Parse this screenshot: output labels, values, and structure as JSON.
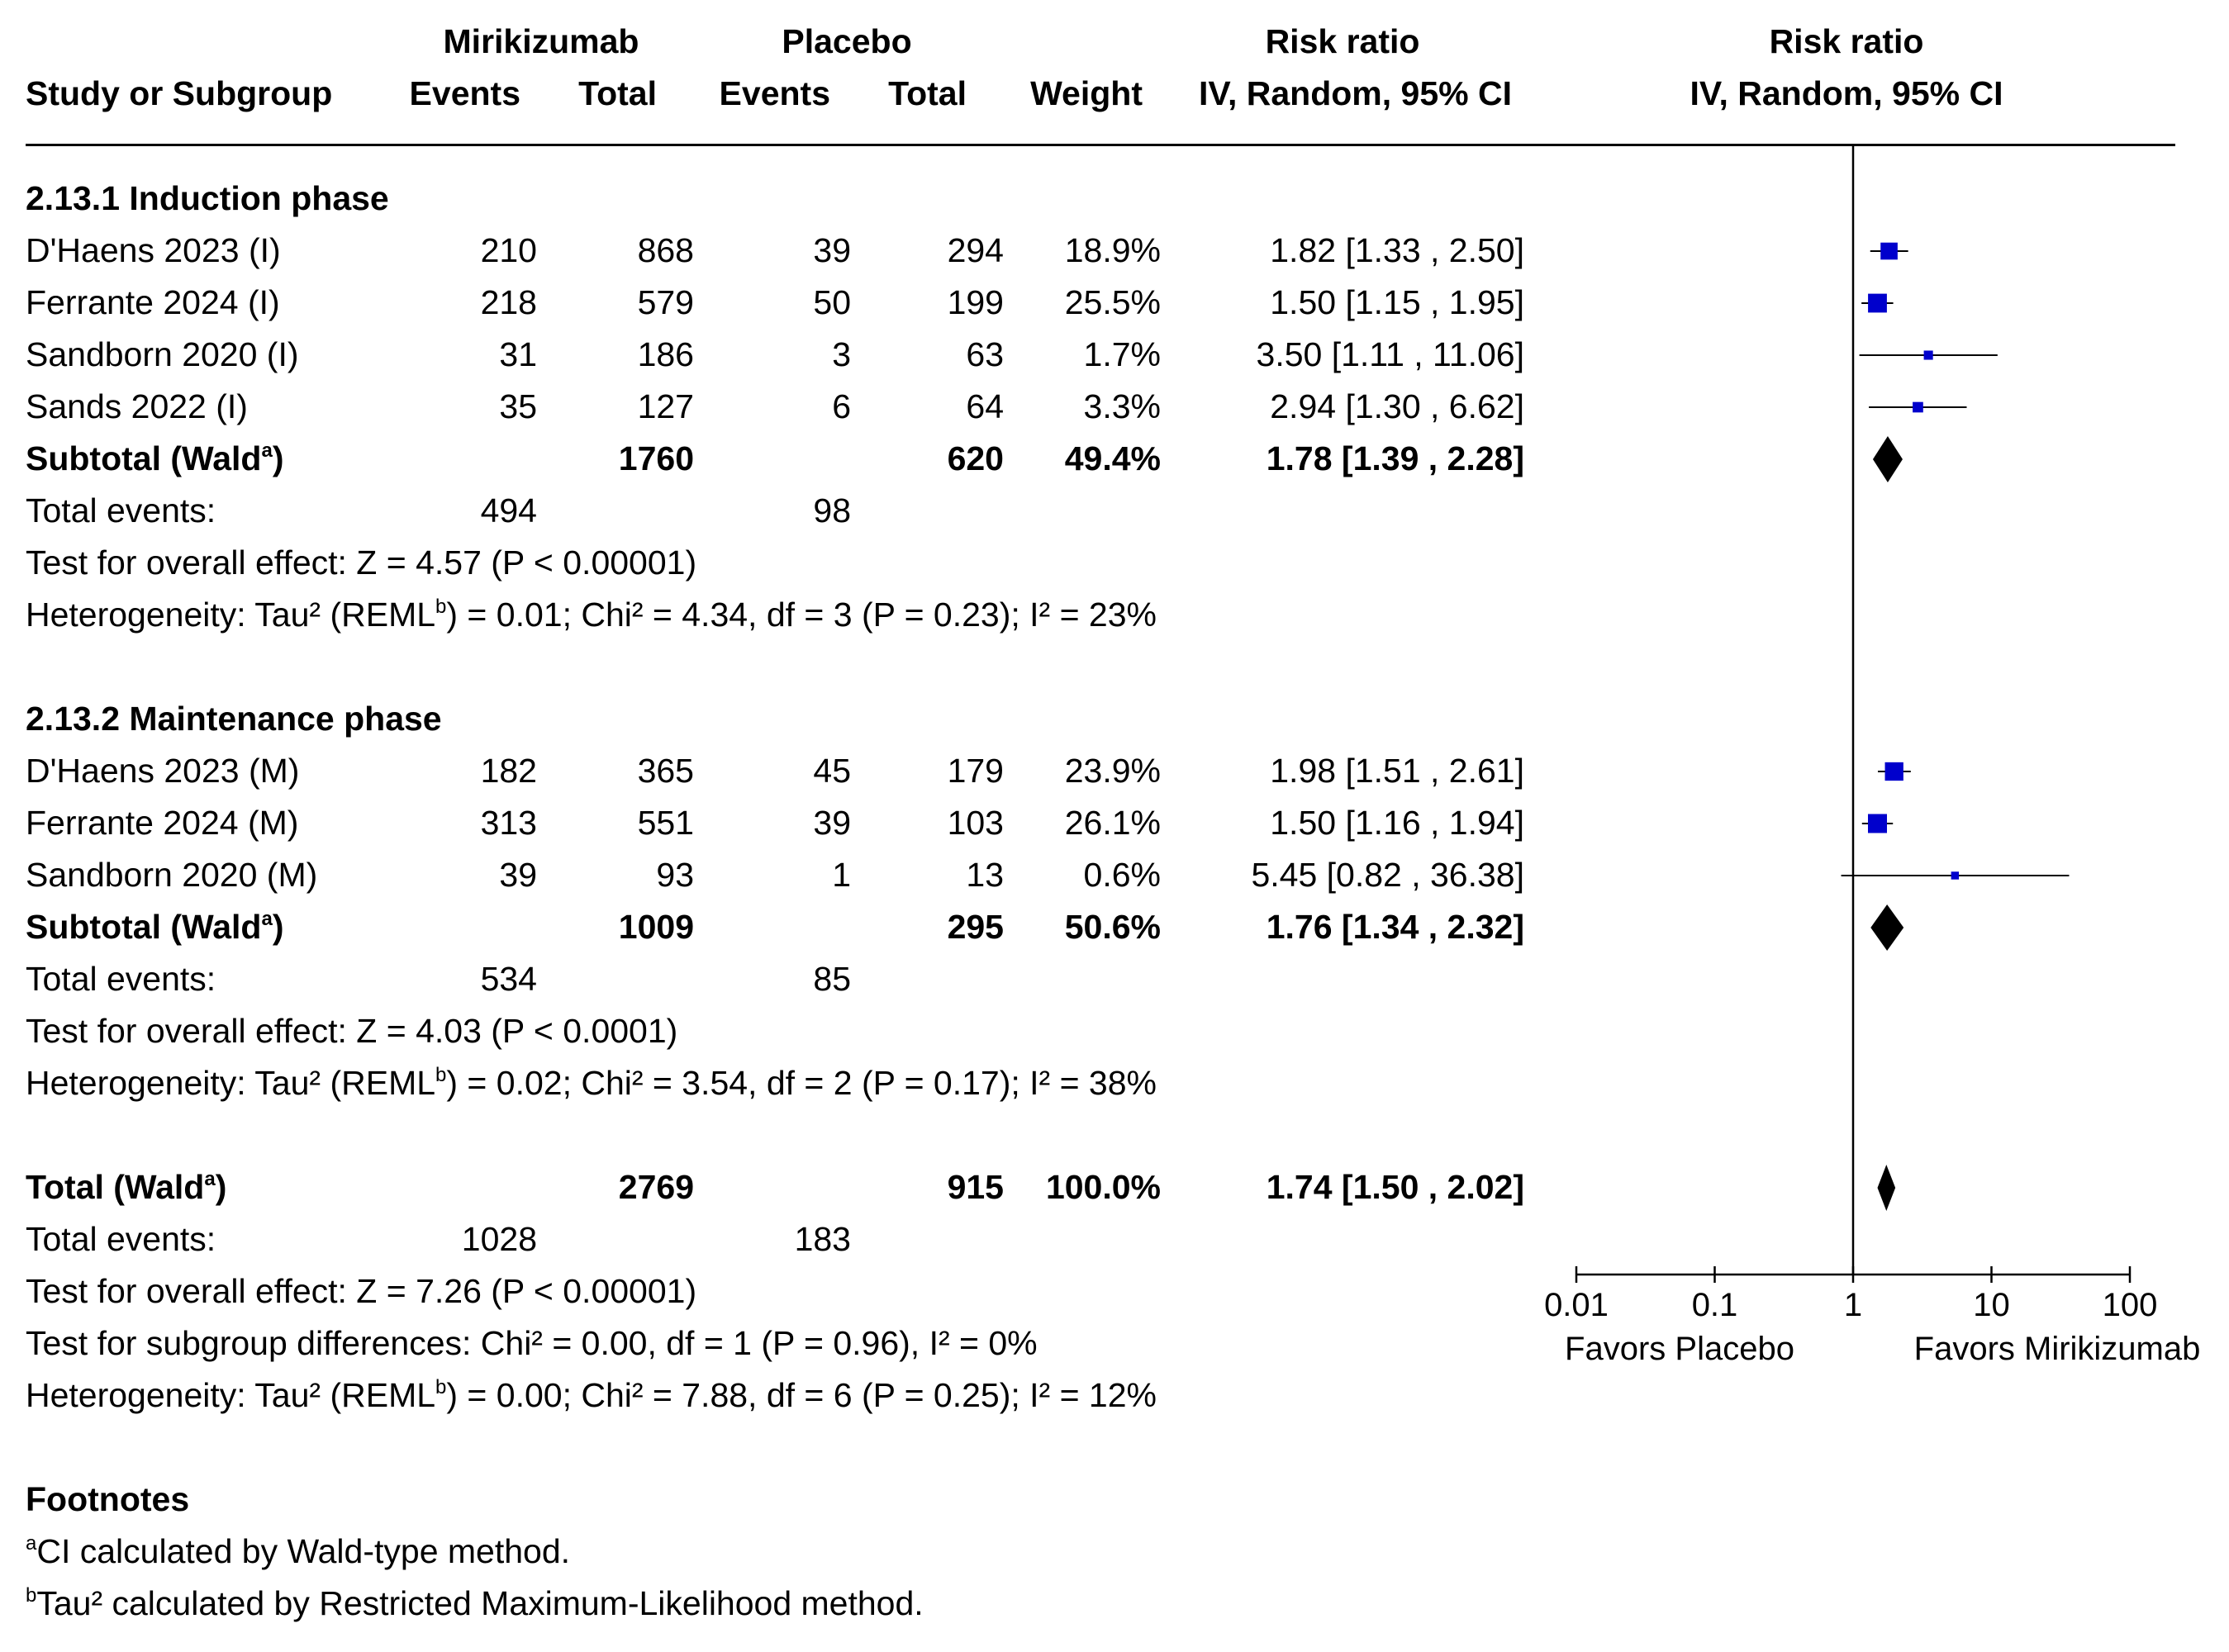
{
  "header": {
    "group1": "Mirikizumab",
    "group2": "Placebo",
    "rr_top": "Risk ratio",
    "plot_top": "Risk ratio",
    "study": "Study or Subgroup",
    "events": "Events",
    "total": "Total",
    "weight": "Weight",
    "ci": "IV, Random, 95% CI",
    "plot_ci": "IV, Random, 95% CI"
  },
  "groups": [
    {
      "title": "2.13.1 Induction phase",
      "rows": [
        {
          "study": "D'Haens 2023 (I)",
          "e1": "210",
          "n1": "868",
          "e2": "39",
          "n2": "294",
          "w": "18.9%",
          "ci": "1.82 [1.33 , 2.50]"
        },
        {
          "study": "Ferrante 2024 (I)",
          "e1": "218",
          "n1": "579",
          "e2": "50",
          "n2": "199",
          "w": "25.5%",
          "ci": "1.50 [1.15 , 1.95]"
        },
        {
          "study": "Sandborn 2020 (I)",
          "e1": "31",
          "n1": "186",
          "e2": "3",
          "n2": "63",
          "w": "1.7%",
          "ci": "3.50 [1.11 , 11.06]"
        },
        {
          "study": "Sands 2022 (I)",
          "e1": "35",
          "n1": "127",
          "e2": "6",
          "n2": "64",
          "w": "3.3%",
          "ci": "2.94 [1.30 , 6.62]"
        }
      ],
      "subtotal": {
        "label": "Subtotal (Wald",
        "sup": "a",
        "close": ")",
        "n1": "1760",
        "n2": "620",
        "w": "49.4%",
        "ci": "1.78 [1.39 , 2.28]"
      },
      "events": {
        "label": "Total events:",
        "e1": "494",
        "e2": "98"
      },
      "effect": "Test for overall effect: Z = 4.57 (P < 0.00001)",
      "het": {
        "pre": "Heterogeneity: Tau² (REML",
        "sup": "b",
        "post": ") = 0.01; Chi² = 4.34, df = 3 (P = 0.23); I² = 23%"
      }
    },
    {
      "title": "2.13.2 Maintenance phase",
      "rows": [
        {
          "study": "D'Haens 2023 (M)",
          "e1": "182",
          "n1": "365",
          "e2": "45",
          "n2": "179",
          "w": "23.9%",
          "ci": "1.98 [1.51 , 2.61]"
        },
        {
          "study": "Ferrante 2024 (M)",
          "e1": "313",
          "n1": "551",
          "e2": "39",
          "n2": "103",
          "w": "26.1%",
          "ci": "1.50 [1.16 , 1.94]"
        },
        {
          "study": "Sandborn 2020 (M)",
          "e1": "39",
          "n1": "93",
          "e2": "1",
          "n2": "13",
          "w": "0.6%",
          "ci": "5.45 [0.82 , 36.38]"
        }
      ],
      "subtotal": {
        "label": "Subtotal (Wald",
        "sup": "a",
        "close": ")",
        "n1": "1009",
        "n2": "295",
        "w": "50.6%",
        "ci": "1.76 [1.34 , 2.32]"
      },
      "events": {
        "label": "Total events:",
        "e1": "534",
        "e2": "85"
      },
      "effect": "Test for overall effect: Z = 4.03 (P < 0.0001)",
      "het": {
        "pre": "Heterogeneity: Tau² (REML",
        "sup": "b",
        "post": ") = 0.02; Chi² = 3.54, df = 2 (P = 0.17); I² = 38%"
      }
    }
  ],
  "total": {
    "label": "Total (Wald",
    "sup": "a",
    "close": ")",
    "n1": "2769",
    "n2": "915",
    "w": "100.0%",
    "ci": "1.74 [1.50 , 2.02]",
    "events": {
      "label": "Total events:",
      "e1": "1028",
      "e2": "183"
    },
    "effect": "Test for overall effect: Z = 7.26 (P < 0.00001)",
    "subgroup": "Test for subgroup differences: Chi² = 0.00, df = 1 (P = 0.96), I² = 0%",
    "het": {
      "pre": "Heterogeneity: Tau² (REML",
      "sup": "b",
      "post": ") = 0.00; Chi² = 7.88, df = 6 (P = 0.25); I² = 12%"
    }
  },
  "footnotes": {
    "title": "Footnotes",
    "a_mark": "a",
    "a_text": "CI calculated by Wald-type method.",
    "b_mark": "b",
    "b_text": "Tau² calculated by Restricted Maximum-Likelihood method."
  },
  "axis_labels": {
    "left": "Favors Placebo",
    "right": "Favors Mirikizumab"
  },
  "colors": {
    "marker": "#0000cc",
    "diamond": "#000000"
  },
  "chart_data": {
    "type": "forest",
    "scale": "log",
    "xlim": [
      0.01,
      100
    ],
    "ticks": [
      {
        "value": 0.01,
        "label": "0.01"
      },
      {
        "value": 0.1,
        "label": "0.1"
      },
      {
        "value": 1,
        "label": "1"
      },
      {
        "value": 10,
        "label": "10"
      },
      {
        "value": 100,
        "label": "100"
      }
    ],
    "studies": [
      {
        "study": "D'Haens 2023 (I)",
        "rr": 1.82,
        "lo": 1.33,
        "hi": 2.5,
        "weight": 18.9
      },
      {
        "study": "Ferrante 2024 (I)",
        "rr": 1.5,
        "lo": 1.15,
        "hi": 1.95,
        "weight": 25.5
      },
      {
        "study": "Sandborn 2020 (I)",
        "rr": 3.5,
        "lo": 1.11,
        "hi": 11.06,
        "weight": 1.7
      },
      {
        "study": "Sands 2022 (I)",
        "rr": 2.94,
        "lo": 1.3,
        "hi": 6.62,
        "weight": 3.3
      },
      {
        "study": "D'Haens 2023 (M)",
        "rr": 1.98,
        "lo": 1.51,
        "hi": 2.61,
        "weight": 23.9
      },
      {
        "study": "Ferrante 2024 (M)",
        "rr": 1.5,
        "lo": 1.16,
        "hi": 1.94,
        "weight": 26.1
      },
      {
        "study": "Sandborn 2020 (M)",
        "rr": 5.45,
        "lo": 0.82,
        "hi": 36.38,
        "weight": 0.6
      }
    ],
    "summaries": [
      {
        "label": "Subtotal Induction",
        "rr": 1.78,
        "lo": 1.39,
        "hi": 2.28
      },
      {
        "label": "Subtotal Maintenance",
        "rr": 1.76,
        "lo": 1.34,
        "hi": 2.32
      },
      {
        "label": "Total",
        "rr": 1.74,
        "lo": 1.5,
        "hi": 2.02
      }
    ]
  }
}
